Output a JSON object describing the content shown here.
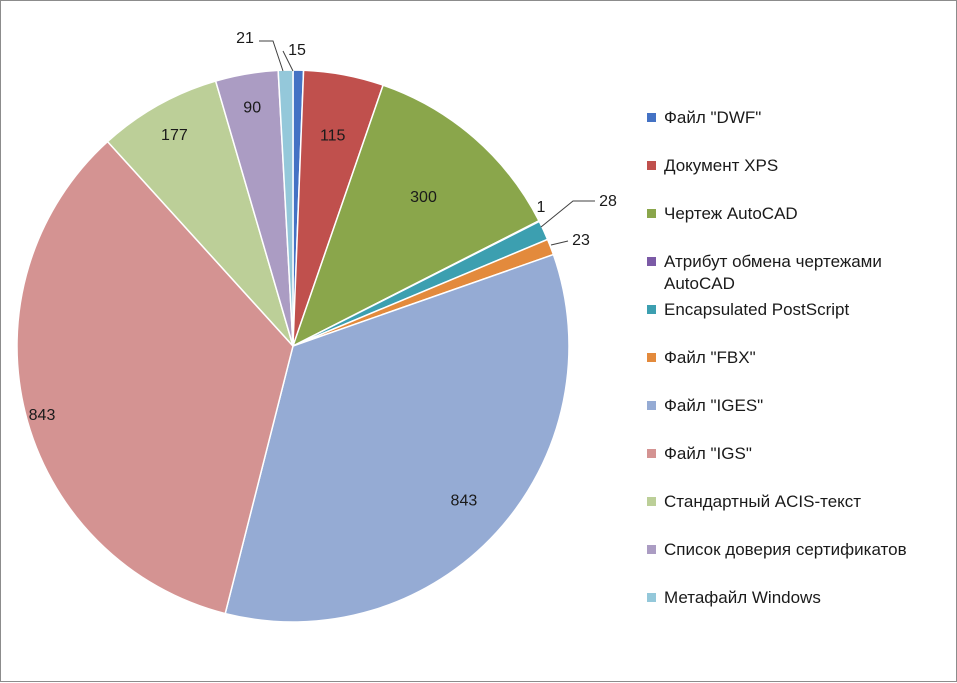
{
  "chart_data": {
    "type": "pie",
    "title": "",
    "legend_position": "right",
    "slices": [
      {
        "label": "Файл \"DWF\"",
        "value": 15,
        "color": "#4472c4",
        "display": "15"
      },
      {
        "label": "Документ XPS",
        "value": 115,
        "color": "#c0504d",
        "display": "115"
      },
      {
        "label": "Чертеж AutoCAD",
        "value": 300,
        "color": "#8aa64b",
        "display": "300"
      },
      {
        "label": "Атрибут обмена чертежами AutoCAD",
        "value": 1,
        "color": "#7b5aa6",
        "display": "1"
      },
      {
        "label": "Encapsulated PostScript",
        "value": 28,
        "color": "#3c9fb0",
        "display": "28"
      },
      {
        "label": "Файл \"FBX\"",
        "value": 23,
        "color": "#e38a3c",
        "display": "23"
      },
      {
        "label": "Файл \"IGES\"",
        "value": 843,
        "color": "#95abd4",
        "display": "843"
      },
      {
        "label": "Файл \"IGS\"",
        "value": 843,
        "color": "#d49392",
        "display": "843"
      },
      {
        "label": "Стандартный ACIS-текст",
        "value": 177,
        "color": "#bccf98",
        "display": "177"
      },
      {
        "label": "Список доверия сертификатов",
        "value": 90,
        "color": "#ab9cc3",
        "display": "90"
      },
      {
        "label": "Метафайл Windows",
        "value": 21,
        "color": "#94c8da",
        "display": "21"
      }
    ]
  }
}
